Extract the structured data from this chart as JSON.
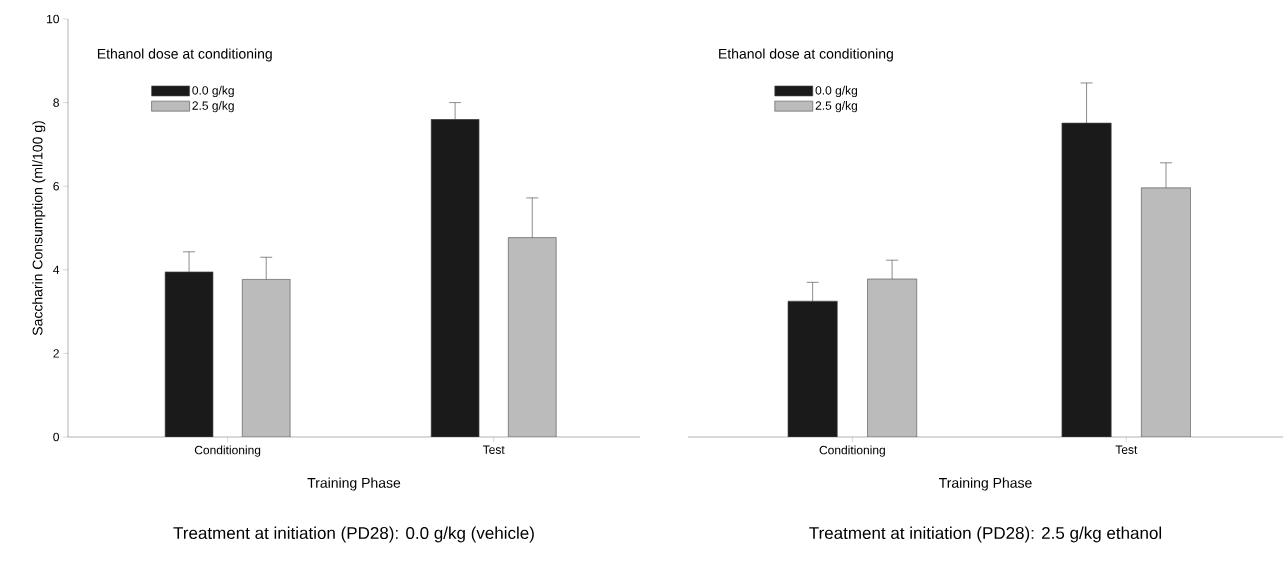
{
  "chart_data": [
    {
      "type": "bar",
      "title": "Treatment at initiation (PD28): 0.0 g/kg (vehicle)",
      "xlabel": "Training Phase",
      "ylabel": "Saccharin Consumption (ml/100 g)",
      "legend_title": "Ethanol dose at conditioning",
      "legend": "top left",
      "categories": [
        "Conditioning",
        "Test"
      ],
      "ylim": [
        0,
        10
      ],
      "yticks": [
        0,
        2,
        4,
        6,
        8,
        10
      ],
      "series": [
        {
          "name": "0.0 g/kg",
          "color": "#1a1a1a",
          "values": [
            3.95,
            7.6
          ],
          "errors": [
            [
              3.95,
              4.43
            ],
            [
              7.6,
              8.0
            ]
          ]
        },
        {
          "name": "2.5 g/kg",
          "color": "#bbbbbb",
          "values": [
            3.77,
            4.77
          ],
          "errors": [
            [
              3.77,
              4.3
            ],
            [
              4.77,
              5.72
            ]
          ]
        }
      ]
    },
    {
      "type": "bar",
      "title": "Treatment at initiation (PD28): 2.5 g/kg ethanol",
      "xlabel": "Training Phase",
      "legend_title": "Ethanol dose at conditioning",
      "legend": "top left",
      "tick_labels": "x",
      "categories": [
        "Conditioning",
        "Test"
      ],
      "ylim": [
        0,
        10
      ],
      "series": [
        {
          "name": "0.0 g/kg",
          "color": "#1a1a1a",
          "values": [
            3.25,
            7.51
          ],
          "errors": [
            [
              3.25,
              3.7
            ],
            [
              7.51,
              8.47
            ]
          ]
        },
        {
          "name": "2.5 g/kg",
          "color": "#bbbbbb",
          "values": [
            3.78,
            5.96
          ],
          "errors": [
            [
              3.78,
              4.23
            ],
            [
              5.96,
              6.56
            ]
          ]
        }
      ]
    }
  ]
}
